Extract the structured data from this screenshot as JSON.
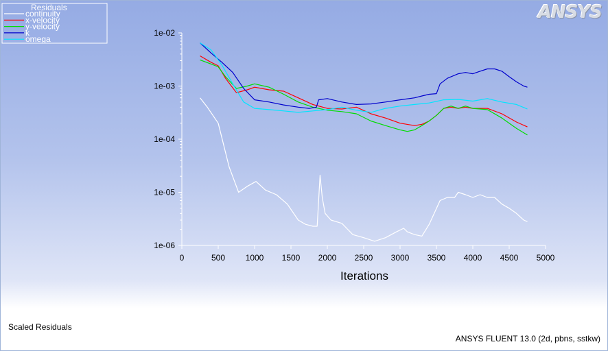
{
  "logo": "ANSYS",
  "footer": {
    "left": "Scaled Residuals",
    "right": "ANSYS FLUENT 13.0 (2d, pbns, sstkw)"
  },
  "chart_data": {
    "type": "line",
    "title": "",
    "legend_title": "Residuals",
    "legend_placement": "top-left",
    "xlabel": "Iterations",
    "ylabel": "",
    "xlim": [
      0,
      5000
    ],
    "ylim": [
      1e-06,
      0.01
    ],
    "yscale": "log",
    "grid": false,
    "xticks": [
      0,
      500,
      1000,
      1500,
      2000,
      2500,
      3000,
      3500,
      4000,
      4500,
      5000
    ],
    "yticks": [
      1e-06,
      1e-05,
      0.0001,
      0.001,
      0.01
    ],
    "ytick_labels": [
      "1e-06",
      "1e-05",
      "1e-04",
      "1e-03",
      "1e-02"
    ],
    "series": [
      {
        "name": "continuity",
        "color": "#ffffff",
        "x": [
          250,
          350,
          500,
          650,
          780,
          900,
          1020,
          1150,
          1300,
          1450,
          1600,
          1700,
          1800,
          1860,
          1900,
          1930,
          1970,
          2050,
          2200,
          2350,
          2500,
          2650,
          2800,
          2950,
          3050,
          3100,
          3200,
          3300,
          3400,
          3550,
          3650,
          3750,
          3800,
          3900,
          4000,
          4100,
          4200,
          4300,
          4400,
          4500,
          4600,
          4700,
          4750
        ],
        "y": [
          0.0006,
          0.0004,
          0.0002,
          3e-05,
          1e-05,
          1.3e-05,
          1.6e-05,
          1.1e-05,
          9e-06,
          6e-06,
          3e-06,
          2.5e-06,
          2.3e-06,
          2.3e-06,
          2.1e-05,
          8e-06,
          4e-06,
          3e-06,
          2.6e-06,
          1.6e-06,
          1.4e-06,
          1.2e-06,
          1.4e-06,
          1.8e-06,
          2.1e-06,
          1.8e-06,
          1.6e-06,
          1.5e-06,
          2.5e-06,
          7e-06,
          8e-06,
          8e-06,
          1e-05,
          9e-06,
          8e-06,
          9e-06,
          8e-06,
          8e-06,
          6e-06,
          5e-06,
          4e-06,
          3e-06,
          2.8e-06
        ]
      },
      {
        "name": "x-velocity",
        "color": "#ff0000",
        "x": [
          250,
          400,
          500,
          600,
          750,
          900,
          1000,
          1200,
          1400,
          1600,
          1800,
          2000,
          2200,
          2400,
          2600,
          2800,
          3000,
          3200,
          3300,
          3400,
          3500,
          3600,
          3700,
          3800,
          3900,
          4000,
          4200,
          4400,
          4600,
          4750
        ],
        "y": [
          0.0037,
          0.0028,
          0.0024,
          0.0014,
          0.00075,
          0.00085,
          0.00095,
          0.00085,
          0.0008,
          0.0006,
          0.00045,
          0.00038,
          0.00037,
          0.0004,
          0.0003,
          0.00025,
          0.0002,
          0.00018,
          0.00019,
          0.00022,
          0.00028,
          0.00038,
          0.0004,
          0.00038,
          0.0004,
          0.00038,
          0.00038,
          0.0003,
          0.00021,
          0.00017
        ]
      },
      {
        "name": "y-velocity",
        "color": "#00dd00",
        "x": [
          250,
          400,
          500,
          600,
          750,
          900,
          1000,
          1200,
          1400,
          1600,
          1800,
          2000,
          2200,
          2400,
          2600,
          2800,
          3000,
          3100,
          3200,
          3300,
          3400,
          3500,
          3600,
          3700,
          3800,
          3900,
          4000,
          4200,
          4400,
          4600,
          4750
        ],
        "y": [
          0.0031,
          0.0026,
          0.0023,
          0.0015,
          0.0009,
          0.001,
          0.0011,
          0.00095,
          0.0007,
          0.0005,
          0.0004,
          0.00035,
          0.00033,
          0.0003,
          0.00022,
          0.00018,
          0.00015,
          0.00014,
          0.00015,
          0.00018,
          0.00022,
          0.00028,
          0.00038,
          0.00042,
          0.00038,
          0.00042,
          0.00038,
          0.00036,
          0.00025,
          0.00016,
          0.00012
        ]
      },
      {
        "name": "k",
        "color": "#0000cc",
        "x": [
          250,
          400,
          550,
          700,
          850,
          1000,
          1200,
          1400,
          1600,
          1750,
          1850,
          1880,
          2000,
          2200,
          2400,
          2600,
          2800,
          3000,
          3200,
          3300,
          3400,
          3500,
          3550,
          3650,
          3800,
          3900,
          4000,
          4100,
          4200,
          4300,
          4400,
          4500,
          4600,
          4700,
          4750
        ],
        "y": [
          0.0065,
          0.0042,
          0.0028,
          0.0018,
          0.0009,
          0.00055,
          0.0005,
          0.00044,
          0.0004,
          0.00038,
          0.0004,
          0.00055,
          0.00058,
          0.0005,
          0.00045,
          0.00046,
          0.0005,
          0.00055,
          0.0006,
          0.00065,
          0.0007,
          0.00072,
          0.0011,
          0.0014,
          0.0017,
          0.0018,
          0.0017,
          0.0019,
          0.0021,
          0.0021,
          0.0019,
          0.0015,
          0.0012,
          0.001,
          0.00095
        ]
      },
      {
        "name": "omega",
        "color": "#00e5ff",
        "x": [
          250,
          400,
          550,
          700,
          850,
          1000,
          1200,
          1400,
          1600,
          1800,
          2000,
          2200,
          2400,
          2600,
          2800,
          3000,
          3200,
          3400,
          3600,
          3800,
          4000,
          4200,
          4400,
          4600,
          4750
        ],
        "y": [
          0.0065,
          0.0048,
          0.0025,
          0.0011,
          0.0005,
          0.00038,
          0.00036,
          0.00034,
          0.00032,
          0.00034,
          0.00036,
          0.0004,
          0.00035,
          0.00032,
          0.00038,
          0.00042,
          0.00045,
          0.00048,
          0.00055,
          0.00056,
          0.00052,
          0.00058,
          0.0005,
          0.00045,
          0.00037
        ]
      }
    ]
  }
}
